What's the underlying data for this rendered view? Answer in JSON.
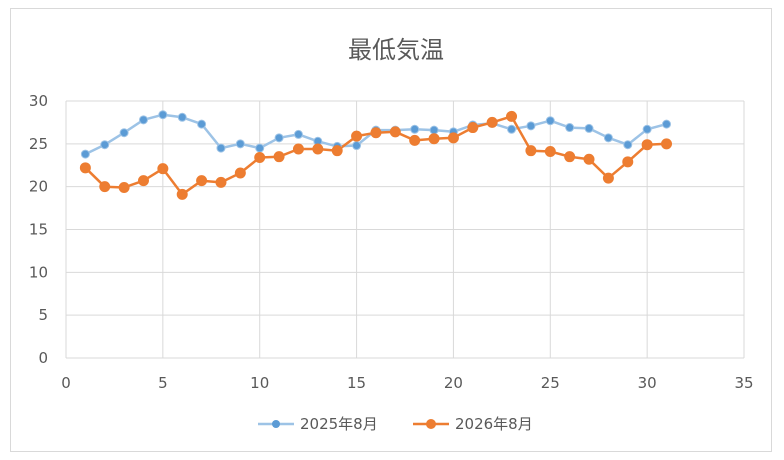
{
  "chart_data": {
    "type": "scatter",
    "title": "最低気温",
    "xlabel": "",
    "ylabel": "",
    "xlim": [
      0,
      35
    ],
    "ylim": [
      0,
      30
    ],
    "xticks": [
      0,
      5,
      10,
      15,
      20,
      25,
      30,
      35
    ],
    "yticks": [
      0,
      5,
      10,
      15,
      20,
      25,
      30
    ],
    "grid": true,
    "legend_position": "bottom",
    "series": [
      {
        "name": "2025年8月",
        "color": "#9dc3e6",
        "marker_color": "#5b9bd5",
        "x": [
          1,
          2,
          3,
          4,
          5,
          6,
          7,
          8,
          9,
          10,
          11,
          12,
          13,
          14,
          15,
          16,
          17,
          18,
          19,
          20,
          21,
          22,
          23,
          24,
          25,
          26,
          27,
          28,
          29,
          30,
          31
        ],
        "y": [
          23.8,
          24.9,
          26.3,
          27.8,
          28.4,
          28.1,
          27.3,
          24.5,
          25.0,
          24.5,
          25.7,
          26.1,
          25.3,
          24.7,
          24.8,
          26.6,
          26.6,
          26.7,
          26.6,
          26.4,
          27.2,
          27.4,
          26.7,
          27.1,
          27.7,
          26.9,
          26.8,
          25.7,
          24.9,
          26.7,
          27.3
        ]
      },
      {
        "name": "2026年8月",
        "color": "#ed7d31",
        "marker_color": "#ed7d31",
        "x": [
          1,
          2,
          3,
          4,
          5,
          6,
          7,
          8,
          9,
          10,
          11,
          12,
          13,
          14,
          15,
          16,
          17,
          18,
          19,
          20,
          21,
          22,
          23,
          24,
          25,
          26,
          27,
          28,
          29,
          30,
          31
        ],
        "y": [
          22.2,
          20.0,
          19.9,
          20.7,
          22.1,
          19.1,
          20.7,
          20.5,
          21.6,
          23.4,
          23.5,
          24.4,
          24.4,
          24.2,
          25.9,
          26.3,
          26.4,
          25.4,
          25.6,
          25.7,
          26.9,
          27.5,
          28.2,
          24.2,
          24.1,
          23.5,
          23.2,
          21.0,
          22.9,
          24.9,
          25.0
        ]
      }
    ]
  }
}
